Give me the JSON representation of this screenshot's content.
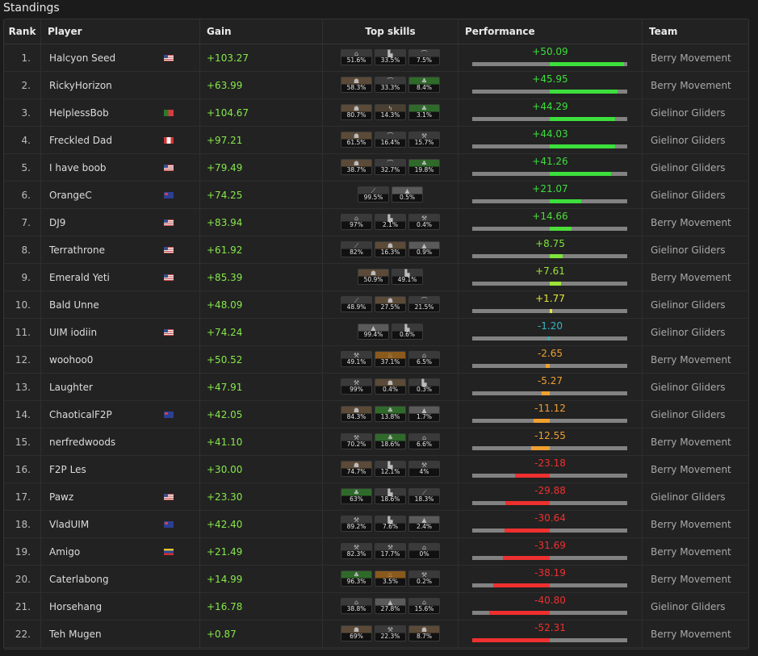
{
  "title": "Standings",
  "headers": {
    "rank": "Rank",
    "player": "Player",
    "gain": "Gain",
    "skills": "Top skills",
    "performance": "Performance",
    "team": "Team"
  },
  "colors": {
    "gain": "#86e84a",
    "positive": "#33e633",
    "neutral": "#33b6c4",
    "negative": "#f0a030",
    "strong_negative": "#ee3030"
  },
  "rows": [
    {
      "rank": "1.",
      "player": "Halcyon Seed",
      "flag": "us",
      "gain": "+103.27",
      "skills": [
        {
          "icon": "hat-icon",
          "pct": "51.6%"
        },
        {
          "icon": "boot-icon",
          "pct": "33.5%"
        },
        {
          "icon": "arc-icon",
          "pct": "7.5%"
        }
      ],
      "performance": "+50.09",
      "perf_value": 50.09,
      "perf_color": "#3ddf3d",
      "team": "Berry Movement"
    },
    {
      "rank": "2.",
      "player": "RickyHorizon",
      "flag": "",
      "gain": "+63.99",
      "skills": [
        {
          "icon": "cape-icon",
          "pct": "58.3%"
        },
        {
          "icon": "arc-icon",
          "pct": "33.3%"
        },
        {
          "icon": "leaf-icon",
          "pct": "8.4%"
        }
      ],
      "performance": "+45.95",
      "perf_value": 45.95,
      "perf_color": "#3ddf3d",
      "team": "Berry Movement"
    },
    {
      "rank": "3.",
      "player": "HelplessBob",
      "flag": "pt",
      "gain": "+104.67",
      "skills": [
        {
          "icon": "cape-icon",
          "pct": "80.7%"
        },
        {
          "icon": "bolt-icon",
          "pct": "14.3%"
        },
        {
          "icon": "leaf-icon",
          "pct": "3.1%"
        }
      ],
      "performance": "+44.29",
      "perf_value": 44.29,
      "perf_color": "#3ddf3d",
      "team": "Gielinor Gliders"
    },
    {
      "rank": "4.",
      "player": "Freckled Dad",
      "flag": "ca",
      "gain": "+97.21",
      "skills": [
        {
          "icon": "cape-icon",
          "pct": "61.5%"
        },
        {
          "icon": "arc-icon",
          "pct": "16.4%"
        },
        {
          "icon": "axe-icon",
          "pct": "15.7%"
        }
      ],
      "performance": "+44.03",
      "perf_value": 44.03,
      "perf_color": "#3ddf3d",
      "team": "Gielinor Gliders"
    },
    {
      "rank": "5.",
      "player": "I have boob",
      "flag": "us",
      "gain": "+79.49",
      "skills": [
        {
          "icon": "cape-icon",
          "pct": "38.7%"
        },
        {
          "icon": "arc-icon",
          "pct": "32.7%"
        },
        {
          "icon": "leaf-icon",
          "pct": "19.8%"
        }
      ],
      "performance": "+41.26",
      "perf_value": 41.26,
      "perf_color": "#3ddf3d",
      "team": "Gielinor Gliders"
    },
    {
      "rank": "6.",
      "player": "OrangeC",
      "flag": "au",
      "gain": "+74.25",
      "skills": [
        {
          "icon": "sword-icon",
          "pct": "99.5%"
        },
        {
          "icon": "mountain-icon",
          "pct": "0.5%"
        }
      ],
      "performance": "+21.07",
      "perf_value": 21.07,
      "perf_color": "#3ddf3d",
      "team": "Gielinor Gliders"
    },
    {
      "rank": "7.",
      "player": "DJ9",
      "flag": "us",
      "gain": "+83.94",
      "skills": [
        {
          "icon": "hat-icon",
          "pct": "97%"
        },
        {
          "icon": "boot-icon",
          "pct": "2.1%"
        },
        {
          "icon": "axe-icon",
          "pct": "0.4%"
        }
      ],
      "performance": "+14.66",
      "perf_value": 14.66,
      "perf_color": "#4ede3a",
      "team": "Berry Movement"
    },
    {
      "rank": "8.",
      "player": "Terrathrone",
      "flag": "us",
      "gain": "+61.92",
      "skills": [
        {
          "icon": "sword-icon",
          "pct": "82%"
        },
        {
          "icon": "cape-icon",
          "pct": "16.3%"
        },
        {
          "icon": "mountain-icon",
          "pct": "0.9%"
        }
      ],
      "performance": "+8.75",
      "perf_value": 8.75,
      "perf_color": "#7ee43a",
      "team": "Gielinor Gliders"
    },
    {
      "rank": "9.",
      "player": "Emerald Yeti",
      "flag": "us",
      "gain": "+85.39",
      "skills": [
        {
          "icon": "cape-icon",
          "pct": "50.9%"
        },
        {
          "icon": "boot-icon",
          "pct": "49.1%"
        }
      ],
      "performance": "+7.61",
      "perf_value": 7.61,
      "perf_color": "#9ee43a",
      "team": "Berry Movement"
    },
    {
      "rank": "10.",
      "player": "Bald Unne",
      "flag": "",
      "gain": "+48.09",
      "skills": [
        {
          "icon": "sword-icon",
          "pct": "48.9%"
        },
        {
          "icon": "cape-icon",
          "pct": "27.5%"
        },
        {
          "icon": "arc-icon",
          "pct": "21.5%"
        }
      ],
      "performance": "+1.77",
      "perf_value": 1.77,
      "perf_color": "#e6e63a",
      "team": "Gielinor Gliders"
    },
    {
      "rank": "11.",
      "player": "UIM iodiin",
      "flag": "us",
      "gain": "+74.24",
      "skills": [
        {
          "icon": "mountain-icon",
          "pct": "99.4%"
        },
        {
          "icon": "boot-icon",
          "pct": "0.6%"
        }
      ],
      "performance": "-1.20",
      "perf_value": -1.2,
      "perf_color": "#33b6c4",
      "team": "Gielinor Gliders"
    },
    {
      "rank": "12.",
      "player": "woohoo0",
      "flag": "",
      "gain": "+50.52",
      "skills": [
        {
          "icon": "axe-icon",
          "pct": "49.1%"
        },
        {
          "icon": "flame-icon",
          "pct": "37.1%"
        },
        {
          "icon": "hat-icon",
          "pct": "6.5%"
        }
      ],
      "performance": "-2.65",
      "perf_value": -2.65,
      "perf_color": "#f0a030",
      "team": "Berry Movement"
    },
    {
      "rank": "13.",
      "player": "Laughter",
      "flag": "",
      "gain": "+47.91",
      "skills": [
        {
          "icon": "axe-icon",
          "pct": "99%"
        },
        {
          "icon": "cape-icon",
          "pct": "0.4%"
        },
        {
          "icon": "boot-icon",
          "pct": "0.3%"
        }
      ],
      "performance": "-5.27",
      "perf_value": -5.27,
      "perf_color": "#f0a030",
      "team": "Gielinor Gliders"
    },
    {
      "rank": "14.",
      "player": "ChaoticalF2P",
      "flag": "au",
      "gain": "+42.05",
      "skills": [
        {
          "icon": "cape-icon",
          "pct": "84.3%"
        },
        {
          "icon": "leaf-icon",
          "pct": "13.8%"
        },
        {
          "icon": "mountain-icon",
          "pct": "1.7%"
        }
      ],
      "performance": "-11.12",
      "perf_value": -11.12,
      "perf_color": "#f0a030",
      "team": "Gielinor Gliders"
    },
    {
      "rank": "15.",
      "player": "nerfredwoods",
      "flag": "",
      "gain": "+41.10",
      "skills": [
        {
          "icon": "axe-icon",
          "pct": "70.2%"
        },
        {
          "icon": "leaf-icon",
          "pct": "18.6%"
        },
        {
          "icon": "hat-icon",
          "pct": "6.6%"
        }
      ],
      "performance": "-12.55",
      "perf_value": -12.55,
      "perf_color": "#f0a030",
      "team": "Berry Movement"
    },
    {
      "rank": "16.",
      "player": "F2P Les",
      "flag": "",
      "gain": "+30.00",
      "skills": [
        {
          "icon": "cape-icon",
          "pct": "74.7%"
        },
        {
          "icon": "boot-icon",
          "pct": "12.1%"
        },
        {
          "icon": "axe-icon",
          "pct": "4%"
        }
      ],
      "performance": "-23.18",
      "perf_value": -23.18,
      "perf_color": "#ee3030",
      "team": "Berry Movement"
    },
    {
      "rank": "17.",
      "player": "Pawz",
      "flag": "us",
      "gain": "+23.30",
      "skills": [
        {
          "icon": "leaf-icon",
          "pct": "63%"
        },
        {
          "icon": "boot-icon",
          "pct": "18.6%"
        },
        {
          "icon": "sword-icon",
          "pct": "18.3%"
        }
      ],
      "performance": "-29.88",
      "perf_value": -29.88,
      "perf_color": "#ee3030",
      "team": "Gielinor Gliders"
    },
    {
      "rank": "18.",
      "player": "VladUIM",
      "flag": "au",
      "gain": "+42.40",
      "skills": [
        {
          "icon": "axe-icon",
          "pct": "89.2%"
        },
        {
          "icon": "boot-icon",
          "pct": "7.6%"
        },
        {
          "icon": "mountain-icon",
          "pct": "2.4%"
        }
      ],
      "performance": "-30.64",
      "perf_value": -30.64,
      "perf_color": "#ee3030",
      "team": "Berry Movement"
    },
    {
      "rank": "19.",
      "player": "Amigo",
      "flag": "ve",
      "gain": "+21.49",
      "skills": [
        {
          "icon": "axe-icon",
          "pct": "82.3%"
        },
        {
          "icon": "axe-icon",
          "pct": "17.7%"
        },
        {
          "icon": "hat-icon",
          "pct": "0%"
        }
      ],
      "performance": "-31.69",
      "perf_value": -31.69,
      "perf_color": "#ee3030",
      "team": "Berry Movement"
    },
    {
      "rank": "20.",
      "player": "Caterlabong",
      "flag": "",
      "gain": "+14.99",
      "skills": [
        {
          "icon": "leaf-icon",
          "pct": "96.3%"
        },
        {
          "icon": "flame-icon",
          "pct": "3.5%"
        },
        {
          "icon": "axe-icon",
          "pct": "0.2%"
        }
      ],
      "performance": "-38.19",
      "perf_value": -38.19,
      "perf_color": "#ee3030",
      "team": "Berry Movement"
    },
    {
      "rank": "21.",
      "player": "Horsehang",
      "flag": "",
      "gain": "+16.78",
      "skills": [
        {
          "icon": "hat-icon",
          "pct": "38.8%"
        },
        {
          "icon": "mountain-icon",
          "pct": "27.8%"
        },
        {
          "icon": "hat-icon",
          "pct": "15.6%"
        }
      ],
      "performance": "-40.80",
      "perf_value": -40.8,
      "perf_color": "#ee3030",
      "team": "Gielinor Gliders"
    },
    {
      "rank": "22.",
      "player": "Teh Mugen",
      "flag": "",
      "gain": "+0.87",
      "skills": [
        {
          "icon": "cape-icon",
          "pct": "69%"
        },
        {
          "icon": "axe-icon",
          "pct": "22.3%"
        },
        {
          "icon": "cape-icon",
          "pct": "8.7%"
        }
      ],
      "performance": "-52.31",
      "perf_value": -52.31,
      "perf_color": "#ee3030",
      "team": "Berry Movement"
    }
  ]
}
